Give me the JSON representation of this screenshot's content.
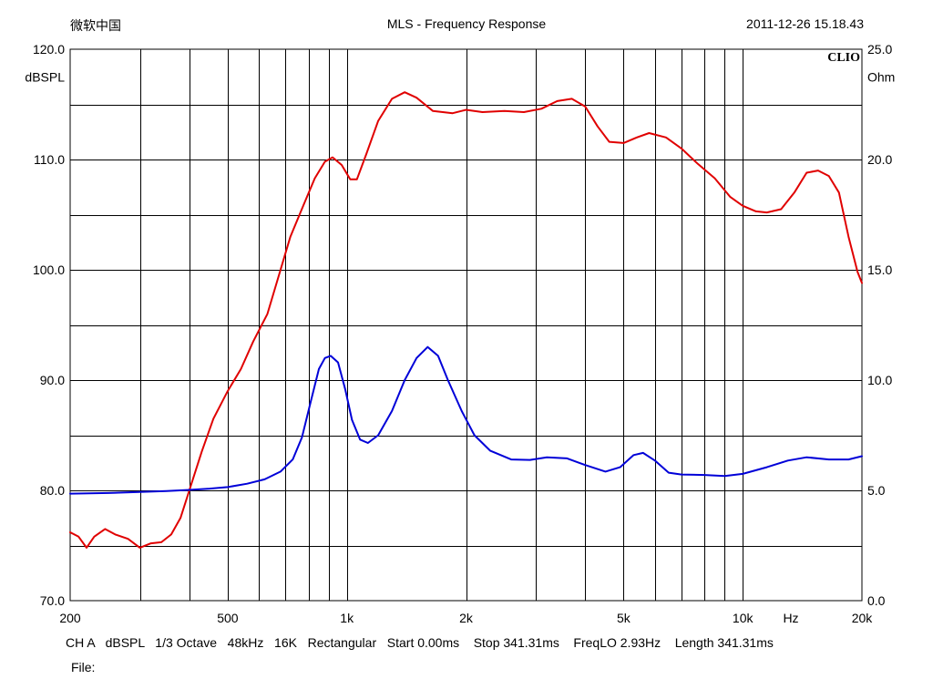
{
  "header": {
    "left": "微软中国",
    "center": "MLS - Frequency Response",
    "right": "2011-12-26 15.18.43"
  },
  "brand": "CLIO",
  "footer": {
    "params": "CH A   dBSPL   1/3 Octave   48kHz   16K   Rectangular   Start 0.00ms    Stop 341.31ms    FreqLO 2.93Hz    Length 341.31ms",
    "file_label": "File:"
  },
  "chart_data": {
    "type": "line",
    "title": "MLS - Frequency Response",
    "x_scale": "log",
    "xlim": [
      200,
      20000
    ],
    "x_ticks": [
      {
        "value": 200,
        "label": "200"
      },
      {
        "value": 500,
        "label": "500"
      },
      {
        "value": 1000,
        "label": "1k"
      },
      {
        "value": 2000,
        "label": "2k"
      },
      {
        "value": 5000,
        "label": "5k"
      },
      {
        "value": 10000,
        "label": "10k"
      },
      {
        "value": 20000,
        "label": "20k"
      }
    ],
    "x_unit_label": "Hz",
    "y_left": {
      "label": "dBSPL",
      "lim": [
        70,
        120
      ],
      "ticks": [
        "70.0",
        "80.0",
        "90.0",
        "100.0",
        "110.0",
        "120.0"
      ]
    },
    "y_right": {
      "label": "Ohm",
      "lim": [
        0,
        25
      ],
      "ticks": [
        "0.0",
        "5.0",
        "10.0",
        "15.0",
        "20.0",
        "25.0"
      ]
    },
    "grid": true,
    "series": [
      {
        "axis": "left",
        "color": "#e00000",
        "points": [
          [
            200,
            76.2
          ],
          [
            210,
            75.8
          ],
          [
            220,
            74.8
          ],
          [
            230,
            75.8
          ],
          [
            245,
            76.5
          ],
          [
            260,
            76.0
          ],
          [
            280,
            75.6
          ],
          [
            300,
            74.8
          ],
          [
            320,
            75.2
          ],
          [
            340,
            75.3
          ],
          [
            360,
            76.0
          ],
          [
            380,
            77.5
          ],
          [
            400,
            80.0
          ],
          [
            430,
            83.5
          ],
          [
            460,
            86.5
          ],
          [
            500,
            89.0
          ],
          [
            540,
            91.0
          ],
          [
            580,
            93.5
          ],
          [
            630,
            96.0
          ],
          [
            680,
            100.0
          ],
          [
            720,
            103.0
          ],
          [
            780,
            106.0
          ],
          [
            830,
            108.3
          ],
          [
            880,
            109.8
          ],
          [
            920,
            110.2
          ],
          [
            970,
            109.5
          ],
          [
            1020,
            108.2
          ],
          [
            1060,
            108.2
          ],
          [
            1120,
            110.5
          ],
          [
            1200,
            113.5
          ],
          [
            1300,
            115.5
          ],
          [
            1400,
            116.1
          ],
          [
            1500,
            115.6
          ],
          [
            1650,
            114.4
          ],
          [
            1850,
            114.2
          ],
          [
            2000,
            114.5
          ],
          [
            2200,
            114.3
          ],
          [
            2500,
            114.4
          ],
          [
            2800,
            114.3
          ],
          [
            3100,
            114.6
          ],
          [
            3400,
            115.3
          ],
          [
            3700,
            115.5
          ],
          [
            4000,
            114.8
          ],
          [
            4300,
            113.0
          ],
          [
            4600,
            111.6
          ],
          [
            5000,
            111.5
          ],
          [
            5400,
            112.0
          ],
          [
            5800,
            112.4
          ],
          [
            6400,
            112.0
          ],
          [
            7000,
            111.0
          ],
          [
            7700,
            109.6
          ],
          [
            8500,
            108.3
          ],
          [
            9300,
            106.6
          ],
          [
            10000,
            105.8
          ],
          [
            10800,
            105.3
          ],
          [
            11500,
            105.2
          ],
          [
            12500,
            105.5
          ],
          [
            13500,
            107.0
          ],
          [
            14500,
            108.8
          ],
          [
            15500,
            109.0
          ],
          [
            16500,
            108.5
          ],
          [
            17500,
            107.0
          ],
          [
            18500,
            103.0
          ],
          [
            19500,
            99.8
          ],
          [
            20000,
            98.8
          ]
        ]
      },
      {
        "axis": "right",
        "color": "#0000d8",
        "points": [
          [
            200,
            4.85
          ],
          [
            250,
            4.88
          ],
          [
            300,
            4.93
          ],
          [
            350,
            4.97
          ],
          [
            400,
            5.02
          ],
          [
            450,
            5.08
          ],
          [
            500,
            5.15
          ],
          [
            560,
            5.3
          ],
          [
            620,
            5.5
          ],
          [
            680,
            5.85
          ],
          [
            730,
            6.4
          ],
          [
            770,
            7.4
          ],
          [
            810,
            9.0
          ],
          [
            850,
            10.5
          ],
          [
            880,
            11.0
          ],
          [
            910,
            11.1
          ],
          [
            950,
            10.8
          ],
          [
            990,
            9.6
          ],
          [
            1030,
            8.2
          ],
          [
            1080,
            7.3
          ],
          [
            1130,
            7.15
          ],
          [
            1200,
            7.5
          ],
          [
            1300,
            8.6
          ],
          [
            1400,
            10.0
          ],
          [
            1500,
            11.0
          ],
          [
            1600,
            11.5
          ],
          [
            1700,
            11.1
          ],
          [
            1800,
            10.0
          ],
          [
            1950,
            8.6
          ],
          [
            2100,
            7.5
          ],
          [
            2300,
            6.8
          ],
          [
            2600,
            6.4
          ],
          [
            2900,
            6.38
          ],
          [
            3200,
            6.5
          ],
          [
            3600,
            6.45
          ],
          [
            4000,
            6.15
          ],
          [
            4500,
            5.85
          ],
          [
            4900,
            6.05
          ],
          [
            5300,
            6.6
          ],
          [
            5600,
            6.7
          ],
          [
            6000,
            6.35
          ],
          [
            6500,
            5.8
          ],
          [
            7000,
            5.72
          ],
          [
            8000,
            5.7
          ],
          [
            9000,
            5.65
          ],
          [
            10000,
            5.75
          ],
          [
            11500,
            6.05
          ],
          [
            13000,
            6.35
          ],
          [
            14500,
            6.5
          ],
          [
            16500,
            6.4
          ],
          [
            18500,
            6.4
          ],
          [
            20000,
            6.55
          ]
        ]
      }
    ]
  }
}
